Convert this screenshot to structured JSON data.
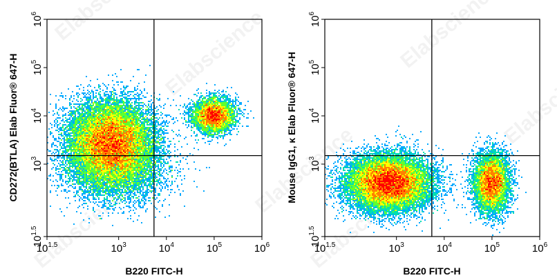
{
  "chart_data": [
    {
      "type": "scatter",
      "subtype": "flow-cytometry-density-dot-plot",
      "xlabel": "B220 FITC-H",
      "ylabel": "CD272(BTLA) Elab Fluor® 647-H",
      "x_scale": "log",
      "y_scale": "log",
      "xlim": [
        31.6,
        1000000
      ],
      "ylim": [
        31.6,
        1000000
      ],
      "x_ticks": [
        {
          "value": 31.6,
          "base": "10",
          "exp": "1.5"
        },
        {
          "value": 1000,
          "base": "10",
          "exp": "3"
        },
        {
          "value": 10000,
          "base": "10",
          "exp": "4"
        },
        {
          "value": 100000,
          "base": "10",
          "exp": "5"
        },
        {
          "value": 1000000,
          "base": "10",
          "exp": "6"
        }
      ],
      "y_ticks": [
        {
          "value": 31.6,
          "base": "10",
          "exp": "1.5"
        },
        {
          "value": 1000,
          "base": "10",
          "exp": "3"
        },
        {
          "value": 10000,
          "base": "10",
          "exp": "4"
        },
        {
          "value": 100000,
          "base": "10",
          "exp": "5"
        },
        {
          "value": 1000000,
          "base": "10",
          "exp": "6"
        }
      ],
      "gate": {
        "x": 5500,
        "y": 1500
      },
      "populations": [
        {
          "x": 700,
          "y": 2800,
          "spread_x_dec": 0.45,
          "spread_y_dec": 0.42,
          "weight": 0.7
        },
        {
          "x": 100000,
          "y": 10000,
          "spread_x_dec": 0.22,
          "spread_y_dec": 0.18,
          "weight": 0.18
        },
        {
          "x": 900,
          "y": 700,
          "spread_x_dec": 0.55,
          "spread_y_dec": 0.35,
          "weight": 0.12
        }
      ],
      "grid": false,
      "legend": "none"
    },
    {
      "type": "scatter",
      "subtype": "flow-cytometry-density-dot-plot",
      "xlabel": "B220 FITC-H",
      "ylabel": "Mouse IgG1, κ Elab Fluor® 647-H",
      "x_scale": "log",
      "y_scale": "log",
      "xlim": [
        31.6,
        1000000
      ],
      "ylim": [
        31.6,
        1000000
      ],
      "x_ticks": [
        {
          "value": 31.6,
          "base": "10",
          "exp": "1.5"
        },
        {
          "value": 1000,
          "base": "10",
          "exp": "3"
        },
        {
          "value": 10000,
          "base": "10",
          "exp": "4"
        },
        {
          "value": 100000,
          "base": "10",
          "exp": "5"
        },
        {
          "value": 1000000,
          "base": "10",
          "exp": "6"
        }
      ],
      "y_ticks": [
        {
          "value": 31.6,
          "base": "10",
          "exp": "1.5"
        },
        {
          "value": 1000,
          "base": "10",
          "exp": "3"
        },
        {
          "value": 10000,
          "base": "10",
          "exp": "4"
        },
        {
          "value": 100000,
          "base": "10",
          "exp": "5"
        },
        {
          "value": 1000000,
          "base": "10",
          "exp": "6"
        }
      ],
      "gate": {
        "x": 5500,
        "y": 1500
      },
      "populations": [
        {
          "x": 700,
          "y": 400,
          "spread_x_dec": 0.42,
          "spread_y_dec": 0.28,
          "weight": 0.72
        },
        {
          "x": 100000,
          "y": 400,
          "spread_x_dec": 0.18,
          "spread_y_dec": 0.3,
          "weight": 0.28
        }
      ],
      "grid": false,
      "legend": "none"
    }
  ],
  "watermark": "Elabscience",
  "colors": {
    "density": [
      "#0000ff",
      "#00a8ff",
      "#00e0b0",
      "#60ff30",
      "#ffff00",
      "#ff8000",
      "#ff0000"
    ],
    "axis": "#000000"
  }
}
